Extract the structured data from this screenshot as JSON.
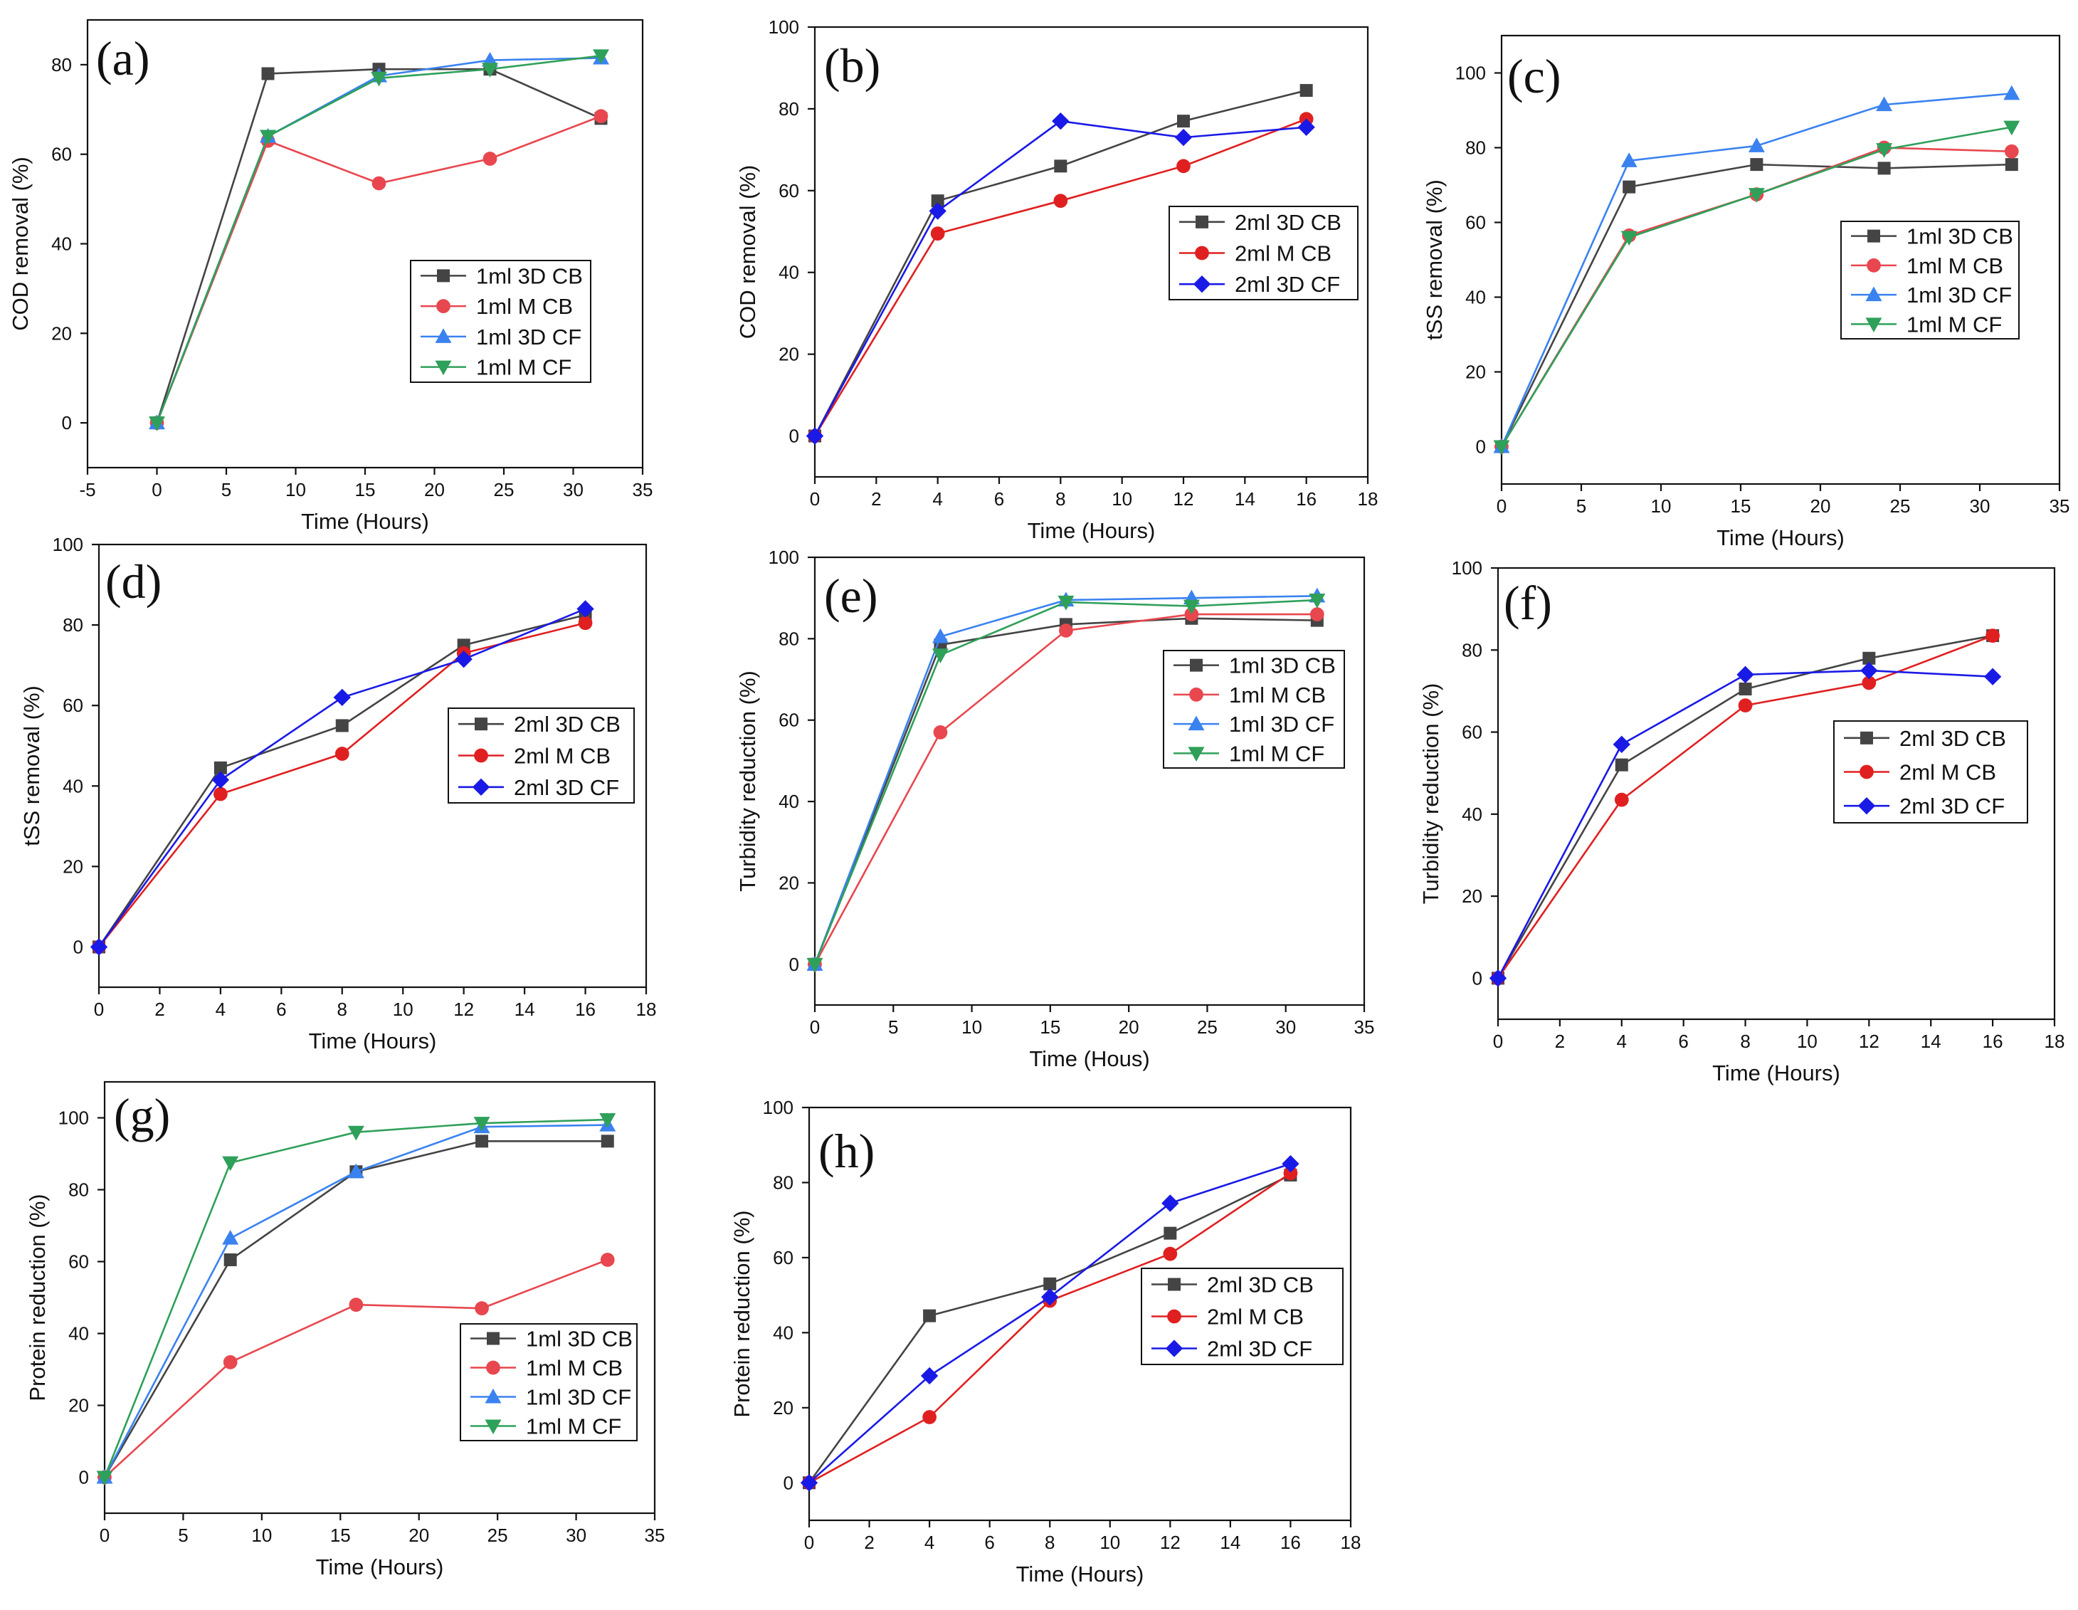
{
  "figure": {
    "panels": [
      {
        "id": "a",
        "panel_label": "(a)",
        "chart_data": {
          "type": "line",
          "xlabel": "Time (Hours)",
          "ylabel": "COD removal (%)",
          "xlim": [
            -5,
            35
          ],
          "ylim": [
            -10,
            90
          ],
          "xticks": [
            -5,
            0,
            5,
            10,
            15,
            20,
            25,
            30,
            35
          ],
          "yticks": [
            0,
            20,
            40,
            60,
            80
          ],
          "legend_position": "center-right",
          "x": [
            0,
            8,
            16,
            24,
            32
          ],
          "series": [
            {
              "name": "1ml 3D CB",
              "color": "#444444",
              "marker": "square",
              "values": [
                0,
                78,
                79,
                79,
                68
              ]
            },
            {
              "name": "1ml M CB",
              "color": "#e8474f",
              "marker": "circle",
              "values": [
                0,
                63,
                53.5,
                59,
                68.5
              ]
            },
            {
              "name": "1ml 3D CF",
              "color": "#3a82f0",
              "marker": "triangle-up",
              "values": [
                0,
                64,
                77.5,
                81,
                81.5
              ]
            },
            {
              "name": "1ml M CF",
              "color": "#2fa05a",
              "marker": "triangle-down",
              "values": [
                0,
                64,
                77,
                79,
                82
              ]
            }
          ]
        }
      },
      {
        "id": "b",
        "panel_label": "(b)",
        "chart_data": {
          "type": "line",
          "xlabel": "Time (Hours)",
          "ylabel": "COD removal (%)",
          "xlim": [
            0,
            18
          ],
          "ylim": [
            -10,
            100
          ],
          "xticks": [
            0,
            2,
            4,
            6,
            8,
            10,
            12,
            14,
            16,
            18
          ],
          "yticks": [
            0,
            20,
            40,
            60,
            80,
            100
          ],
          "legend_position": "center-right",
          "x": [
            0,
            4,
            8,
            12,
            16
          ],
          "series": [
            {
              "name": "2ml 3D CB",
              "color": "#444444",
              "marker": "square",
              "values": [
                0,
                57.5,
                66,
                77,
                84.5
              ]
            },
            {
              "name": "2ml M CB",
              "color": "#e02020",
              "marker": "circle",
              "values": [
                0,
                49.5,
                57.5,
                66,
                77.5
              ]
            },
            {
              "name": "2ml 3D CF",
              "color": "#1a1ae6",
              "marker": "diamond",
              "values": [
                0,
                55,
                77,
                73,
                75.5
              ]
            }
          ]
        }
      },
      {
        "id": "c",
        "panel_label": "(c)",
        "chart_data": {
          "type": "line",
          "xlabel": "Time (Hours)",
          "ylabel": "tSS removal (%)",
          "xlim": [
            0,
            35
          ],
          "ylim": [
            -10,
            110
          ],
          "xticks": [
            0,
            5,
            10,
            15,
            20,
            25,
            30,
            35
          ],
          "yticks": [
            0,
            20,
            40,
            60,
            80,
            100
          ],
          "legend_position": "center-right",
          "x": [
            0,
            8,
            16,
            24,
            32
          ],
          "series": [
            {
              "name": "1ml 3D CB",
              "color": "#444444",
              "marker": "square",
              "values": [
                0,
                69.5,
                75.5,
                74.5,
                75.5
              ]
            },
            {
              "name": "1ml M CB",
              "color": "#e8474f",
              "marker": "circle",
              "values": [
                0,
                56.5,
                67.5,
                80,
                79
              ]
            },
            {
              "name": "1ml 3D CF",
              "color": "#3a82f0",
              "marker": "triangle-up",
              "values": [
                0,
                76.5,
                80.5,
                91.5,
                94.5
              ]
            },
            {
              "name": "1ml M CF",
              "color": "#2fa05a",
              "marker": "triangle-down",
              "values": [
                0,
                56,
                67.5,
                79.5,
                85.5
              ]
            }
          ]
        }
      },
      {
        "id": "d",
        "panel_label": "(d)",
        "chart_data": {
          "type": "line",
          "xlabel": "Time (Hours)",
          "ylabel": "tSS removal (%)",
          "xlim": [
            0,
            18
          ],
          "ylim": [
            -10,
            100
          ],
          "xticks": [
            0,
            2,
            4,
            6,
            8,
            10,
            12,
            14,
            16,
            18
          ],
          "yticks": [
            0,
            20,
            40,
            60,
            80,
            100
          ],
          "legend_position": "center-right",
          "x": [
            0,
            4,
            8,
            12,
            16
          ],
          "series": [
            {
              "name": "2ml 3D CB",
              "color": "#444444",
              "marker": "square",
              "values": [
                0,
                44.5,
                55,
                75,
                82.5
              ]
            },
            {
              "name": "2ml M CB",
              "color": "#e02020",
              "marker": "circle",
              "values": [
                0,
                38,
                48,
                73,
                80.5
              ]
            },
            {
              "name": "2ml 3D CF",
              "color": "#1a1ae6",
              "marker": "diamond",
              "values": [
                0,
                41.5,
                62,
                71.5,
                84
              ]
            }
          ]
        }
      },
      {
        "id": "e",
        "panel_label": "(e)",
        "chart_data": {
          "type": "line",
          "xlabel": "Time (Hous)",
          "ylabel": "Turbidity reduction (%)",
          "xlim": [
            0,
            35
          ],
          "ylim": [
            -10,
            100
          ],
          "xticks": [
            0,
            5,
            10,
            15,
            20,
            25,
            30,
            35
          ],
          "yticks": [
            0,
            20,
            40,
            60,
            80,
            100
          ],
          "legend_position": "center-right",
          "x": [
            0,
            8,
            16,
            24,
            32
          ],
          "series": [
            {
              "name": "1ml 3D CB",
              "color": "#444444",
              "marker": "square",
              "values": [
                0,
                78.5,
                83.5,
                85,
                84.5
              ]
            },
            {
              "name": "1ml M CB",
              "color": "#e8474f",
              "marker": "circle",
              "values": [
                0,
                57,
                82,
                86,
                86
              ]
            },
            {
              "name": "1ml 3D CF",
              "color": "#3a82f0",
              "marker": "triangle-up",
              "values": [
                0,
                80.5,
                89.5,
                90,
                90.5
              ]
            },
            {
              "name": "1ml M CF",
              "color": "#2fa05a",
              "marker": "triangle-down",
              "values": [
                0,
                76,
                89,
                88,
                89.5
              ]
            }
          ]
        }
      },
      {
        "id": "f",
        "panel_label": "(f)",
        "chart_data": {
          "type": "line",
          "xlabel": "Time (Hours)",
          "ylabel": "Turbidity reduction (%)",
          "xlim": [
            0,
            18
          ],
          "ylim": [
            -10,
            100
          ],
          "xticks": [
            0,
            2,
            4,
            6,
            8,
            10,
            12,
            14,
            16,
            18
          ],
          "yticks": [
            0,
            20,
            40,
            60,
            80,
            100
          ],
          "legend_position": "center-right",
          "x": [
            0,
            4,
            8,
            12,
            16
          ],
          "series": [
            {
              "name": "2ml 3D CB",
              "color": "#444444",
              "marker": "square",
              "values": [
                0,
                52,
                70.5,
                78,
                83.5
              ]
            },
            {
              "name": "2ml M CB",
              "color": "#e02020",
              "marker": "circle",
              "values": [
                0,
                43.5,
                66.5,
                72,
                83.5
              ]
            },
            {
              "name": "2ml 3D CF",
              "color": "#1a1ae6",
              "marker": "diamond",
              "values": [
                0,
                57,
                74,
                75,
                73.5
              ]
            }
          ]
        }
      },
      {
        "id": "g",
        "panel_label": "(g)",
        "chart_data": {
          "type": "line",
          "xlabel": "Time (Hours)",
          "ylabel": "Protein reduction (%)",
          "xlim": [
            0,
            35
          ],
          "ylim": [
            -10,
            110
          ],
          "xticks": [
            0,
            5,
            10,
            15,
            20,
            25,
            30,
            35
          ],
          "yticks": [
            0,
            20,
            40,
            60,
            80,
            100
          ],
          "legend_position": "bottom-right",
          "x": [
            0,
            8,
            16,
            24,
            32
          ],
          "series": [
            {
              "name": "1ml 3D CB",
              "color": "#444444",
              "marker": "square",
              "values": [
                0,
                60.5,
                85,
                93.5,
                93.5
              ]
            },
            {
              "name": "1ml M CB",
              "color": "#e8474f",
              "marker": "circle",
              "values": [
                0,
                32,
                48,
                47,
                60.5
              ]
            },
            {
              "name": "1ml 3D CF",
              "color": "#3a82f0",
              "marker": "triangle-up",
              "values": [
                0,
                66.5,
                85,
                97.5,
                98
              ]
            },
            {
              "name": "1ml M CF",
              "color": "#2fa05a",
              "marker": "triangle-down",
              "values": [
                0,
                87.5,
                96,
                98.5,
                99.5
              ]
            }
          ]
        }
      },
      {
        "id": "h",
        "panel_label": "(h)",
        "chart_data": {
          "type": "line",
          "xlabel": "Time (Hours)",
          "ylabel": "Protein reduction (%)",
          "xlim": [
            0,
            18
          ],
          "ylim": [
            -10,
            100
          ],
          "xticks": [
            0,
            2,
            4,
            6,
            8,
            10,
            12,
            14,
            16,
            18
          ],
          "yticks": [
            0,
            20,
            40,
            60,
            80,
            100
          ],
          "legend_position": "center-right",
          "x": [
            0,
            4,
            8,
            12,
            16
          ],
          "series": [
            {
              "name": "2ml 3D CB",
              "color": "#444444",
              "marker": "square",
              "values": [
                0,
                44.5,
                53,
                66.5,
                82
              ]
            },
            {
              "name": "2ml M CB",
              "color": "#e02020",
              "marker": "circle",
              "values": [
                0,
                17.5,
                48.5,
                61,
                82.5
              ]
            },
            {
              "name": "2ml 3D CF",
              "color": "#1a1ae6",
              "marker": "diamond",
              "values": [
                0,
                28.5,
                49.5,
                74.5,
                85
              ]
            }
          ]
        }
      }
    ]
  }
}
